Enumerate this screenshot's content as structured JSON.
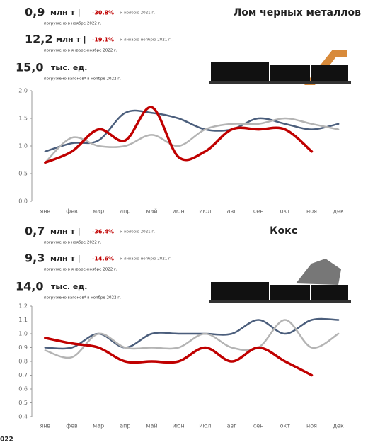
{
  "chart_data": [
    {
      "type": "line",
      "title": "Лом черных металлов",
      "categories": [
        "янв",
        "фев",
        "мар",
        "апр",
        "май",
        "июн",
        "июл",
        "авг",
        "сен",
        "окт",
        "ноя",
        "дек"
      ],
      "ylim": [
        0,
        2
      ],
      "yticks": [
        {
          "value": 0,
          "label": "0,0"
        },
        {
          "value": 0.5,
          "label": "0,5"
        },
        {
          "value": 1,
          "label": "1,0"
        },
        {
          "value": 1.5,
          "label": "1,5"
        },
        {
          "value": 2,
          "label": "2,0"
        }
      ],
      "series": [
        {
          "color": "#4b5e7c",
          "values": [
            0.9,
            1.05,
            1.1,
            1.6,
            1.6,
            1.5,
            1.3,
            1.3,
            1.5,
            1.4,
            1.3,
            1.4
          ]
        },
        {
          "color": "#b4b4b4",
          "values": [
            0.7,
            1.15,
            1.0,
            1.0,
            1.2,
            1.0,
            1.3,
            1.4,
            1.4,
            1.5,
            1.4,
            1.3
          ]
        },
        {
          "color": "#c00000",
          "values": [
            0.7,
            0.9,
            1.3,
            1.1,
            1.7,
            0.8,
            0.9,
            1.3,
            1.3,
            1.3,
            0.9,
            null
          ]
        }
      ]
    },
    {
      "type": "line",
      "title": "Кокс",
      "categories": [
        "янв",
        "фев",
        "мар",
        "апр",
        "май",
        "июн",
        "июл",
        "авг",
        "сен",
        "окт",
        "ноя",
        "дек"
      ],
      "ylim": [
        0.4,
        1.2
      ],
      "yticks": [
        {
          "value": 0.4,
          "label": "0,4"
        },
        {
          "value": 0.5,
          "label": "0,5"
        },
        {
          "value": 0.6,
          "label": "0,6"
        },
        {
          "value": 0.7,
          "label": "0,7"
        },
        {
          "value": 0.8,
          "label": "0,8"
        },
        {
          "value": 0.9,
          "label": "0,9"
        },
        {
          "value": 1.0,
          "label": "1,0"
        },
        {
          "value": 1.1,
          "label": "1,1"
        },
        {
          "value": 1.2,
          "label": "1,2"
        }
      ],
      "series": [
        {
          "color": "#4b5e7c",
          "values": [
            0.9,
            0.9,
            1.0,
            0.9,
            1.0,
            1.0,
            1.0,
            1.0,
            1.1,
            1.0,
            1.1,
            1.1
          ]
        },
        {
          "color": "#b4b4b4",
          "values": [
            0.88,
            0.83,
            1.0,
            0.9,
            0.9,
            0.9,
            1.0,
            0.9,
            0.9,
            1.1,
            0.9,
            1.0
          ]
        },
        {
          "color": "#c00000",
          "values": [
            0.97,
            0.93,
            0.9,
            0.8,
            0.8,
            0.8,
            0.9,
            0.8,
            0.9,
            0.8,
            0.7,
            null
          ]
        }
      ]
    }
  ],
  "panels": [
    {
      "rows": [
        {
          "value": "0,9",
          "unit": "млн т |",
          "change": "-30,8%",
          "change_note": "к ноябрю 2021 г.",
          "note": "погружено в ноябре 2022 г."
        },
        {
          "value": "12,2",
          "unit": "млн т |",
          "change": "-19,1%",
          "change_note": "к январю-ноябрю 2021 г.",
          "note": "погружено в январе-ноябре 2022 г."
        },
        {
          "value": "15,0",
          "unit": "тыс. ед.",
          "note": "погружено вагонов* в ноябре 2022 г."
        }
      ]
    },
    {
      "rows": [
        {
          "value": "0,7",
          "unit": "млн т |",
          "change": "-36,4%",
          "change_note": "к ноябрю 2021 г.",
          "note": "погружено в ноябре 2022 г."
        },
        {
          "value": "9,3",
          "unit": "млн т |",
          "change": "-14,6%",
          "change_note": "к январю-ноябрю 2021 г.",
          "note": "погружено в январе-ноябре 2022 г."
        },
        {
          "value": "14,0",
          "unit": "тыс. ед.",
          "note": "погружено вагонов* в ноябре 2022 г."
        }
      ]
    }
  ],
  "footer": "022"
}
